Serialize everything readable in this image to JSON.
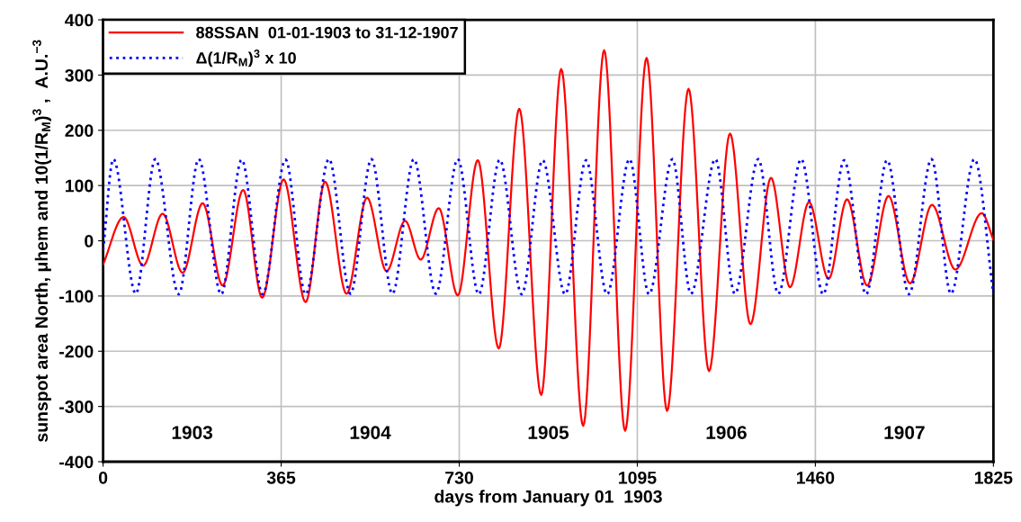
{
  "chart_data": {
    "type": "line",
    "xlabel": "days from January 01  1903",
    "ylabel": "sunspot area North, μhem and 10(1/R$_{M}$)$^{3}$ ,  A.U.$^{−3}$",
    "xlim": [
      0,
      1825
    ],
    "xticks": [
      0,
      365,
      730,
      1095,
      1460,
      1825
    ],
    "ylim": [
      -400,
      400
    ],
    "yticks": [
      -400,
      -300,
      -200,
      -100,
      0,
      100,
      200,
      300,
      400
    ],
    "grid": true,
    "legend": "top left",
    "series": [
      {
        "name": "88SSAN  01-01-1903 to 31-12-1907",
        "color": "#ff0000",
        "line_style": "solid",
        "x": [
          0,
          42,
          82,
          122,
          163,
          204,
          245,
          287,
          326,
          370,
          415,
          455,
          499,
          541,
          581,
          619,
          651,
          688,
          727,
          768,
          811,
          853,
          898,
          939,
          984,
          1027,
          1070,
          1114,
          1156,
          1200,
          1242,
          1285,
          1327,
          1369,
          1408,
          1447,
          1487,
          1525,
          1566,
          1610,
          1654,
          1699,
          1747,
          1801,
          1825
        ],
        "values": [
          -43,
          43,
          -45,
          49,
          -58,
          68,
          -81,
          92,
          -103,
          111,
          -111,
          107,
          -96,
          78,
          -55,
          36,
          -34,
          59,
          -99,
          146,
          -195,
          239,
          -279,
          311,
          -335,
          345,
          -344,
          331,
          -308,
          275,
          -236,
          194,
          -151,
          114,
          -84,
          70,
          -69,
          75,
          -81,
          81,
          -77,
          65,
          -52,
          50,
          2
        ]
      },
      {
        "name": "Δ(1/R$_{M}$)$^{3}$ x 10",
        "color": "#0000ff",
        "line_style": "dotted",
        "x": [
          0,
          21,
          67,
          107,
          155,
          196,
          242,
          284,
          327,
          374,
          415,
          463,
          507,
          550,
          593,
          637,
          682,
          727,
          770,
          813,
          858,
          901,
          947,
          990,
          1033,
          1079,
          1119,
          1167,
          1205,
          1255,
          1295,
          1343,
          1384,
          1431,
          1476,
          1519,
          1564,
          1607,
          1652,
          1698,
          1738,
          1786,
          1825
        ],
        "values": [
          -17,
          148,
          -96,
          148,
          -97,
          148,
          -97,
          147,
          -97,
          147,
          -97,
          148,
          -96,
          148,
          -96,
          148,
          -96,
          148,
          -97,
          147,
          -97,
          146,
          -97,
          146,
          -97,
          148,
          -97,
          148,
          -96,
          148,
          -96,
          148,
          -96,
          148,
          -97,
          146,
          -97,
          146,
          -97,
          148,
          -96,
          148,
          -96
        ]
      }
    ],
    "annotations": [
      "1903",
      "1904",
      "1905",
      "1906",
      "1907"
    ]
  }
}
